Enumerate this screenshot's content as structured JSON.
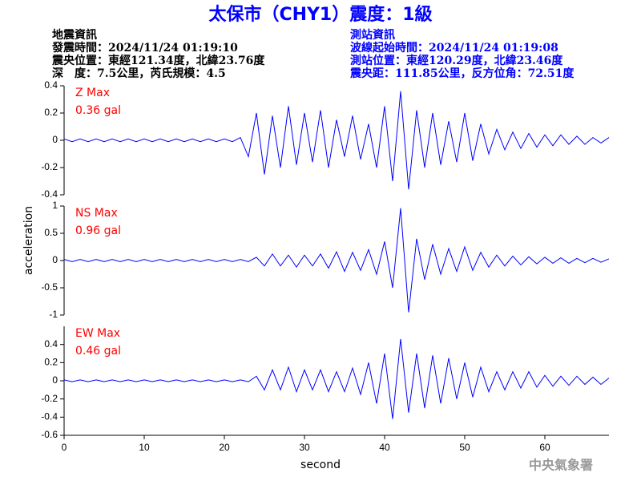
{
  "header": {
    "title": "太保市（CHY1）震度：1級",
    "event_info": [
      "地震資訊",
      "發震時間：2024/11/24 01:19:10",
      "震央位置：東經121.34度，北緯23.76度",
      "深　度：7.5公里，芮氏規模：4.5"
    ],
    "station_info": [
      "測站資訊",
      "波線起始時間：2024/11/24 01:19:08",
      "測站位置：東經120.29度，北緯23.46度",
      "震央距：111.85公里，反方位角：72.51度"
    ]
  },
  "ylabel": "acceleration",
  "footer": "中央氣象署",
  "chart_data": [
    {
      "type": "line",
      "label": "Z Max",
      "max_label": "0.36 gal",
      "ylim": [
        -0.4,
        0.4
      ],
      "yticks": [
        -0.4,
        -0.2,
        0,
        0.2,
        0.4
      ],
      "x": [
        0,
        1,
        2,
        3,
        4,
        5,
        6,
        7,
        8,
        9,
        10,
        11,
        12,
        13,
        14,
        15,
        16,
        17,
        18,
        19,
        20,
        21,
        22,
        23,
        24,
        25,
        26,
        27,
        28,
        29,
        30,
        31,
        32,
        33,
        34,
        35,
        36,
        37,
        38,
        39,
        40,
        41,
        42,
        43,
        44,
        45,
        46,
        47,
        48,
        49,
        50,
        51,
        52,
        53,
        54,
        55,
        56,
        57,
        58,
        59,
        60,
        61,
        62,
        63,
        64,
        65,
        66,
        67,
        68
      ],
      "series": [
        {
          "color": "#0000ff",
          "values": [
            0.01,
            -0.01,
            0.01,
            -0.01,
            0.01,
            -0.01,
            0.01,
            -0.01,
            0.01,
            -0.01,
            0.01,
            -0.01,
            0.01,
            -0.01,
            0.01,
            -0.01,
            0.01,
            -0.01,
            0.01,
            -0.01,
            0.01,
            -0.01,
            0.02,
            -0.12,
            0.2,
            -0.25,
            0.18,
            -0.2,
            0.25,
            -0.18,
            0.2,
            -0.16,
            0.22,
            -0.2,
            0.15,
            -0.12,
            0.18,
            -0.14,
            0.12,
            -0.2,
            0.25,
            -0.3,
            0.36,
            -0.36,
            0.22,
            -0.2,
            0.2,
            -0.18,
            0.14,
            -0.16,
            0.2,
            -0.15,
            0.12,
            -0.1,
            0.08,
            -0.07,
            0.06,
            -0.06,
            0.05,
            -0.05,
            0.04,
            -0.04,
            0.04,
            -0.03,
            0.03,
            -0.03,
            0.02,
            -0.02,
            0.02
          ]
        }
      ]
    },
    {
      "type": "line",
      "label": "NS Max",
      "max_label": "0.96 gal",
      "ylim": [
        -1,
        1
      ],
      "yticks": [
        -1,
        -0.5,
        0,
        0.5,
        1
      ],
      "x": [
        0,
        1,
        2,
        3,
        4,
        5,
        6,
        7,
        8,
        9,
        10,
        11,
        12,
        13,
        14,
        15,
        16,
        17,
        18,
        19,
        20,
        21,
        22,
        23,
        24,
        25,
        26,
        27,
        28,
        29,
        30,
        31,
        32,
        33,
        34,
        35,
        36,
        37,
        38,
        39,
        40,
        41,
        42,
        43,
        44,
        45,
        46,
        47,
        48,
        49,
        50,
        51,
        52,
        53,
        54,
        55,
        56,
        57,
        58,
        59,
        60,
        61,
        62,
        63,
        64,
        65,
        66,
        67,
        68
      ],
      "series": [
        {
          "color": "#0000ff",
          "values": [
            0.02,
            -0.02,
            0.02,
            -0.02,
            0.02,
            -0.02,
            0.02,
            -0.02,
            0.02,
            -0.02,
            0.02,
            -0.02,
            0.02,
            -0.02,
            0.02,
            -0.02,
            0.02,
            -0.02,
            0.02,
            -0.02,
            0.02,
            -0.02,
            0.02,
            -0.02,
            0.06,
            -0.1,
            0.12,
            -0.1,
            0.1,
            -0.12,
            0.1,
            -0.1,
            0.12,
            -0.14,
            0.16,
            -0.2,
            0.15,
            -0.18,
            0.2,
            -0.25,
            0.35,
            -0.5,
            0.96,
            -0.95,
            0.4,
            -0.35,
            0.3,
            -0.25,
            0.22,
            -0.2,
            0.25,
            -0.18,
            0.15,
            -0.12,
            0.1,
            -0.1,
            0.08,
            -0.08,
            0.07,
            -0.06,
            0.06,
            -0.05,
            0.05,
            -0.05,
            0.04,
            -0.04,
            0.04,
            -0.03,
            0.03
          ]
        }
      ]
    },
    {
      "type": "line",
      "label": "EW Max",
      "max_label": "0.46 gal",
      "ylim": [
        -0.6,
        0.6
      ],
      "yticks": [
        -0.6,
        -0.4,
        -0.2,
        0,
        0.2,
        0.4
      ],
      "xlim": [
        0,
        68
      ],
      "xticks": [
        0,
        10,
        20,
        30,
        40,
        50,
        60
      ],
      "xlabel": "second",
      "x": [
        0,
        1,
        2,
        3,
        4,
        5,
        6,
        7,
        8,
        9,
        10,
        11,
        12,
        13,
        14,
        15,
        16,
        17,
        18,
        19,
        20,
        21,
        22,
        23,
        24,
        25,
        26,
        27,
        28,
        29,
        30,
        31,
        32,
        33,
        34,
        35,
        36,
        37,
        38,
        39,
        40,
        41,
        42,
        43,
        44,
        45,
        46,
        47,
        48,
        49,
        50,
        51,
        52,
        53,
        54,
        55,
        56,
        57,
        58,
        59,
        60,
        61,
        62,
        63,
        64,
        65,
        66,
        67,
        68
      ],
      "series": [
        {
          "color": "#0000ff",
          "values": [
            0.01,
            -0.01,
            0.01,
            -0.01,
            0.01,
            -0.01,
            0.01,
            -0.01,
            0.01,
            -0.01,
            0.01,
            -0.01,
            0.01,
            -0.01,
            0.01,
            -0.01,
            0.01,
            -0.01,
            0.01,
            -0.01,
            0.01,
            -0.01,
            0.01,
            -0.01,
            0.05,
            -0.1,
            0.12,
            -0.1,
            0.15,
            -0.12,
            0.12,
            -0.1,
            0.12,
            -0.12,
            0.1,
            -0.12,
            0.14,
            -0.15,
            0.2,
            -0.25,
            0.3,
            -0.42,
            0.46,
            -0.35,
            0.3,
            -0.3,
            0.28,
            -0.25,
            0.25,
            -0.2,
            0.2,
            -0.18,
            0.15,
            -0.12,
            0.1,
            -0.1,
            0.1,
            -0.08,
            0.1,
            -0.07,
            0.06,
            -0.06,
            0.05,
            -0.05,
            0.05,
            -0.04,
            0.04,
            -0.04,
            0.03
          ]
        }
      ]
    }
  ]
}
